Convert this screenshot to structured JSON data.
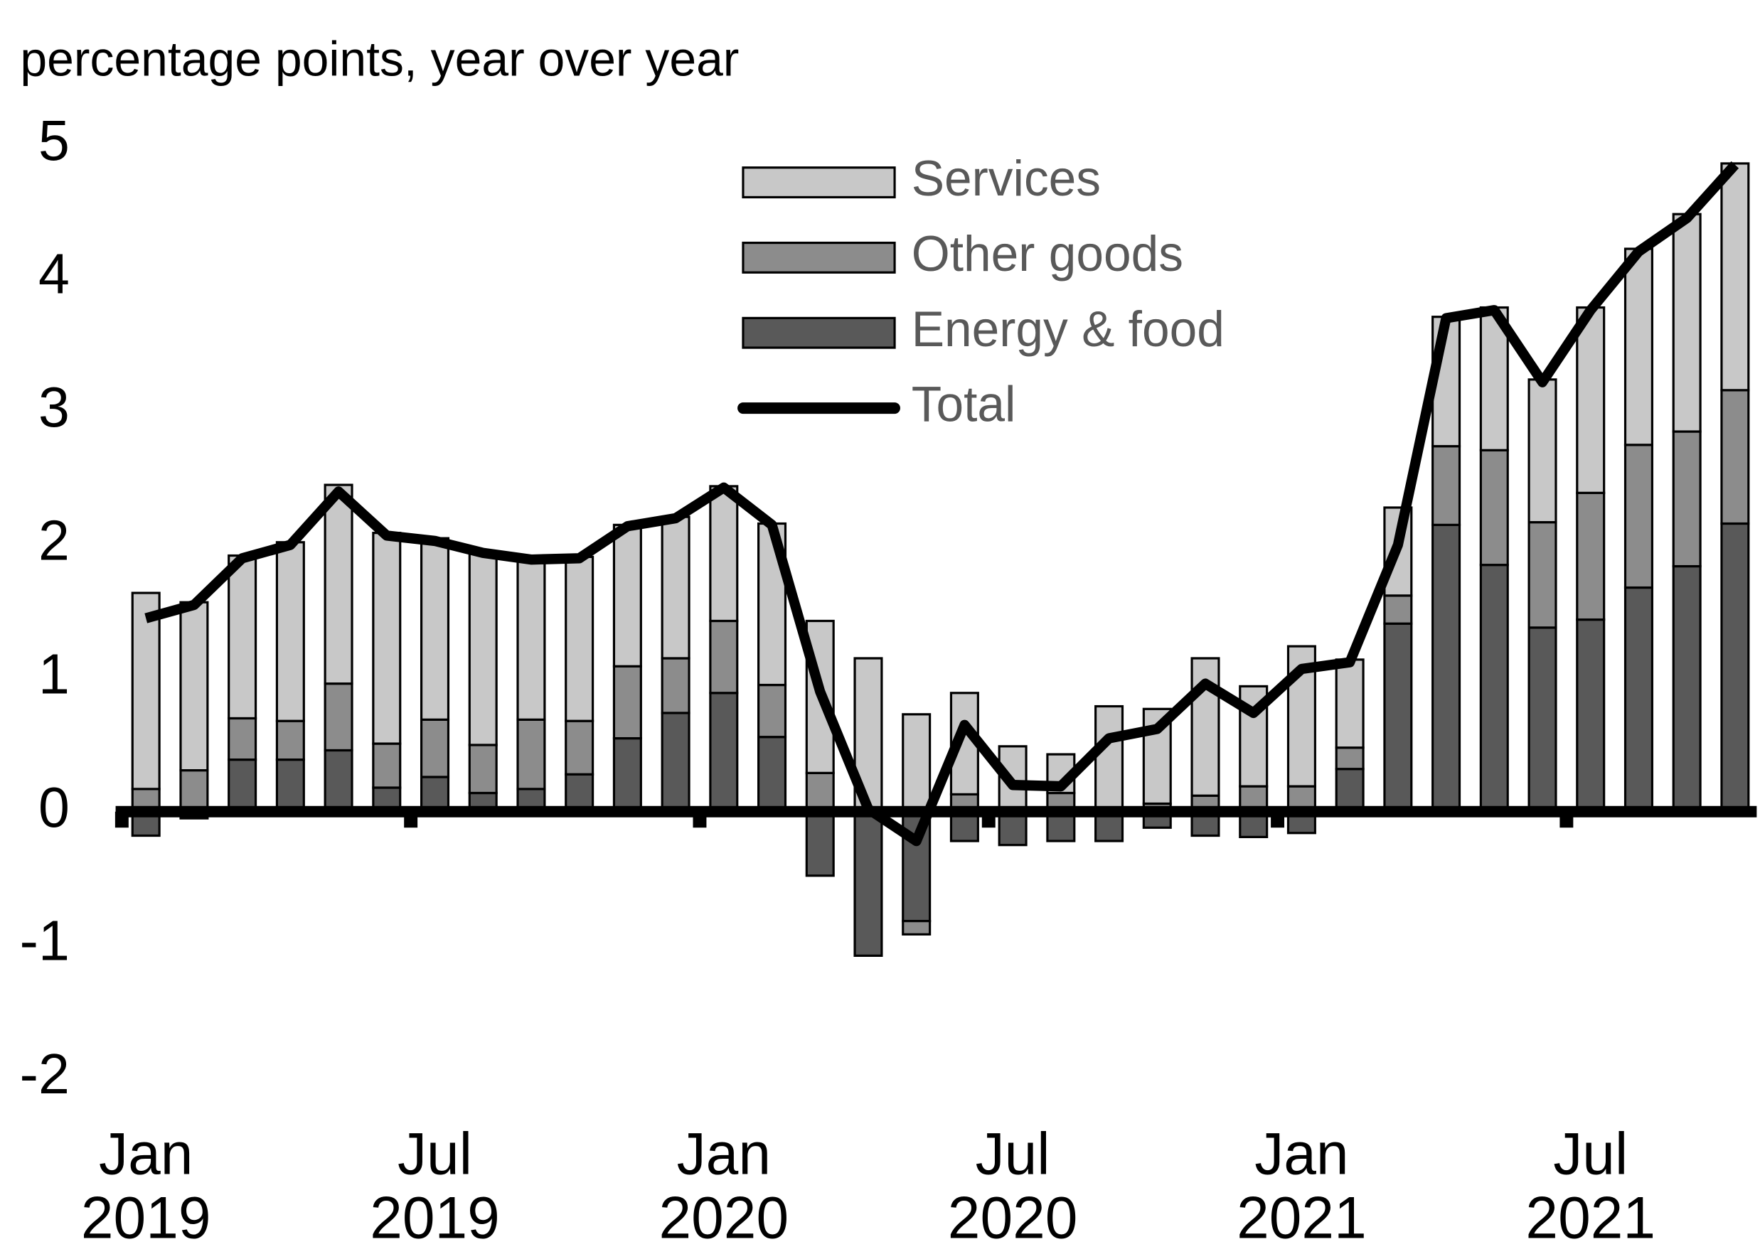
{
  "chart_data": {
    "type": "bar",
    "y_axis_label": "percentage points, year over year",
    "categories": [
      "Jan 2019",
      null,
      null,
      null,
      null,
      null,
      "Jul 2019",
      null,
      null,
      null,
      null,
      null,
      "Jan 2020",
      null,
      null,
      null,
      null,
      null,
      "Jul 2020",
      null,
      null,
      null,
      null,
      null,
      "Jan 2021",
      null,
      null,
      null,
      null,
      null,
      "Jul 2021",
      null,
      null,
      null
    ],
    "series": [
      {
        "name": "Energy & food",
        "color": "#595959",
        "type": "bar",
        "values": [
          -0.18,
          -0.05,
          0.39,
          0.39,
          0.46,
          0.18,
          0.26,
          0.14,
          0.17,
          0.28,
          0.55,
          0.74,
          0.89,
          0.56,
          -0.48,
          -1.08,
          -0.82,
          -0.22,
          -0.25,
          -0.22,
          -0.22,
          -0.12,
          -0.18,
          -0.19,
          -0.16,
          0.32,
          1.41,
          2.15,
          1.85,
          1.38,
          1.44,
          1.68,
          1.84,
          2.16
        ]
      },
      {
        "name": "Other goods",
        "color": "#8c8c8c",
        "type": "bar",
        "values": [
          0.17,
          0.31,
          0.31,
          0.29,
          0.5,
          0.33,
          0.43,
          0.36,
          0.52,
          0.4,
          0.54,
          0.41,
          0.54,
          0.39,
          0.29,
          0.0,
          -0.1,
          0.13,
          0.03,
          0.14,
          0.03,
          0.06,
          0.12,
          0.19,
          0.19,
          0.16,
          0.21,
          0.59,
          0.86,
          0.79,
          0.95,
          1.07,
          1.01,
          1.0
        ]
      },
      {
        "name": "Services",
        "color": "#c8c8c8",
        "type": "bar",
        "values": [
          1.47,
          1.26,
          1.22,
          1.34,
          1.49,
          1.58,
          1.36,
          1.45,
          1.21,
          1.23,
          1.06,
          1.06,
          1.01,
          1.21,
          1.14,
          1.15,
          0.73,
          0.76,
          0.46,
          0.29,
          0.76,
          0.71,
          1.03,
          0.75,
          1.05,
          0.66,
          0.66,
          0.97,
          1.07,
          1.07,
          1.39,
          1.47,
          1.63,
          1.7
        ]
      },
      {
        "name": "Total",
        "color": "#000000",
        "type": "line",
        "values": [
          1.45,
          1.55,
          1.9,
          2.0,
          2.4,
          2.07,
          2.03,
          1.94,
          1.89,
          1.9,
          2.14,
          2.2,
          2.43,
          2.15,
          0.9,
          0.02,
          -0.22,
          0.65,
          0.2,
          0.19,
          0.55,
          0.62,
          0.96,
          0.74,
          1.07,
          1.12,
          2.0,
          3.7,
          3.76,
          3.22,
          3.76,
          4.2,
          4.45,
          4.85
        ]
      }
    ],
    "ylim": [
      -2,
      5
    ],
    "yticks": [
      -2,
      -1,
      0,
      1,
      2,
      3,
      4,
      5
    ]
  }
}
